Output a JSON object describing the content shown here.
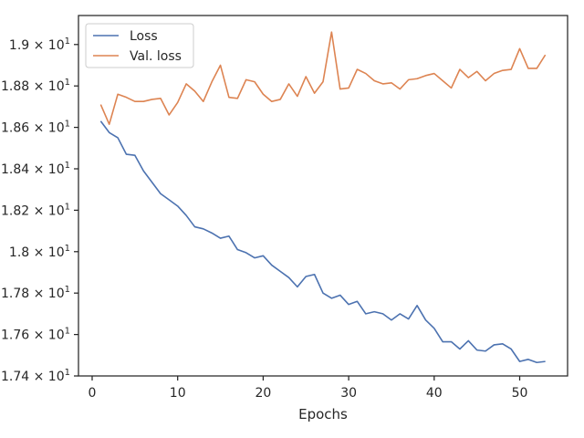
{
  "chart_data": {
    "type": "line",
    "xlabel": "Epochs",
    "ylabel": "",
    "xlim": [
      -1.6,
      55.6
    ],
    "ylim": [
      17.4,
      19.14
    ],
    "x_ticks": [
      0,
      10,
      20,
      30,
      40,
      50
    ],
    "x_tick_labels": [
      "0",
      "10",
      "20",
      "30",
      "40",
      "50"
    ],
    "y_ticks": [
      17.4,
      17.6,
      17.8,
      18.0,
      18.2,
      18.4,
      18.6,
      18.8,
      19.0
    ],
    "y_tick_labels": [
      [
        "1.74",
        "10",
        "1"
      ],
      [
        "1.76",
        "10",
        "1"
      ],
      [
        "1.78",
        "10",
        "1"
      ],
      [
        "1.8",
        "10",
        "1"
      ],
      [
        "1.82",
        "10",
        "1"
      ],
      [
        "1.84",
        "10",
        "1"
      ],
      [
        "1.86",
        "10",
        "1"
      ],
      [
        "1.88",
        "10",
        "1"
      ],
      [
        "1.9",
        "10",
        "1"
      ]
    ],
    "legend_position": "top-left",
    "x": [
      1,
      2,
      3,
      4,
      5,
      6,
      7,
      8,
      9,
      10,
      11,
      12,
      13,
      14,
      15,
      16,
      17,
      18,
      19,
      20,
      21,
      22,
      23,
      24,
      25,
      26,
      27,
      28,
      29,
      30,
      31,
      32,
      33,
      34,
      35,
      36,
      37,
      38,
      39,
      40,
      41,
      42,
      43,
      44,
      45,
      46,
      47,
      48,
      49,
      50,
      51,
      52,
      53
    ],
    "series": [
      {
        "name": "Loss",
        "color": "#4c72b0",
        "values": [
          18.63,
          18.575,
          18.55,
          18.47,
          18.465,
          18.39,
          18.335,
          18.28,
          18.25,
          18.22,
          18.175,
          18.12,
          18.11,
          18.09,
          18.065,
          18.075,
          18.01,
          17.995,
          17.97,
          17.98,
          17.935,
          17.905,
          17.875,
          17.83,
          17.88,
          17.89,
          17.8,
          17.775,
          17.79,
          17.745,
          17.76,
          17.7,
          17.71,
          17.7,
          17.67,
          17.7,
          17.675,
          17.74,
          17.67,
          17.63,
          17.565,
          17.565,
          17.53,
          17.57,
          17.525,
          17.52,
          17.55,
          17.555,
          17.53,
          17.47,
          17.48,
          17.465,
          17.47
        ]
      },
      {
        "name": "Val. loss",
        "color": "#dd8452",
        "values": [
          18.71,
          18.615,
          18.76,
          18.745,
          18.725,
          18.725,
          18.735,
          18.74,
          18.66,
          18.72,
          18.81,
          18.775,
          18.725,
          18.82,
          18.9,
          18.745,
          18.74,
          18.83,
          18.82,
          18.76,
          18.725,
          18.735,
          18.81,
          18.75,
          18.845,
          18.765,
          18.82,
          19.06,
          18.785,
          18.79,
          18.88,
          18.86,
          18.825,
          18.81,
          18.815,
          18.785,
          18.83,
          18.835,
          18.85,
          18.86,
          18.825,
          18.79,
          18.88,
          18.84,
          18.87,
          18.825,
          18.86,
          18.875,
          18.88,
          18.98,
          18.885,
          18.885,
          18.95
        ]
      }
    ]
  }
}
